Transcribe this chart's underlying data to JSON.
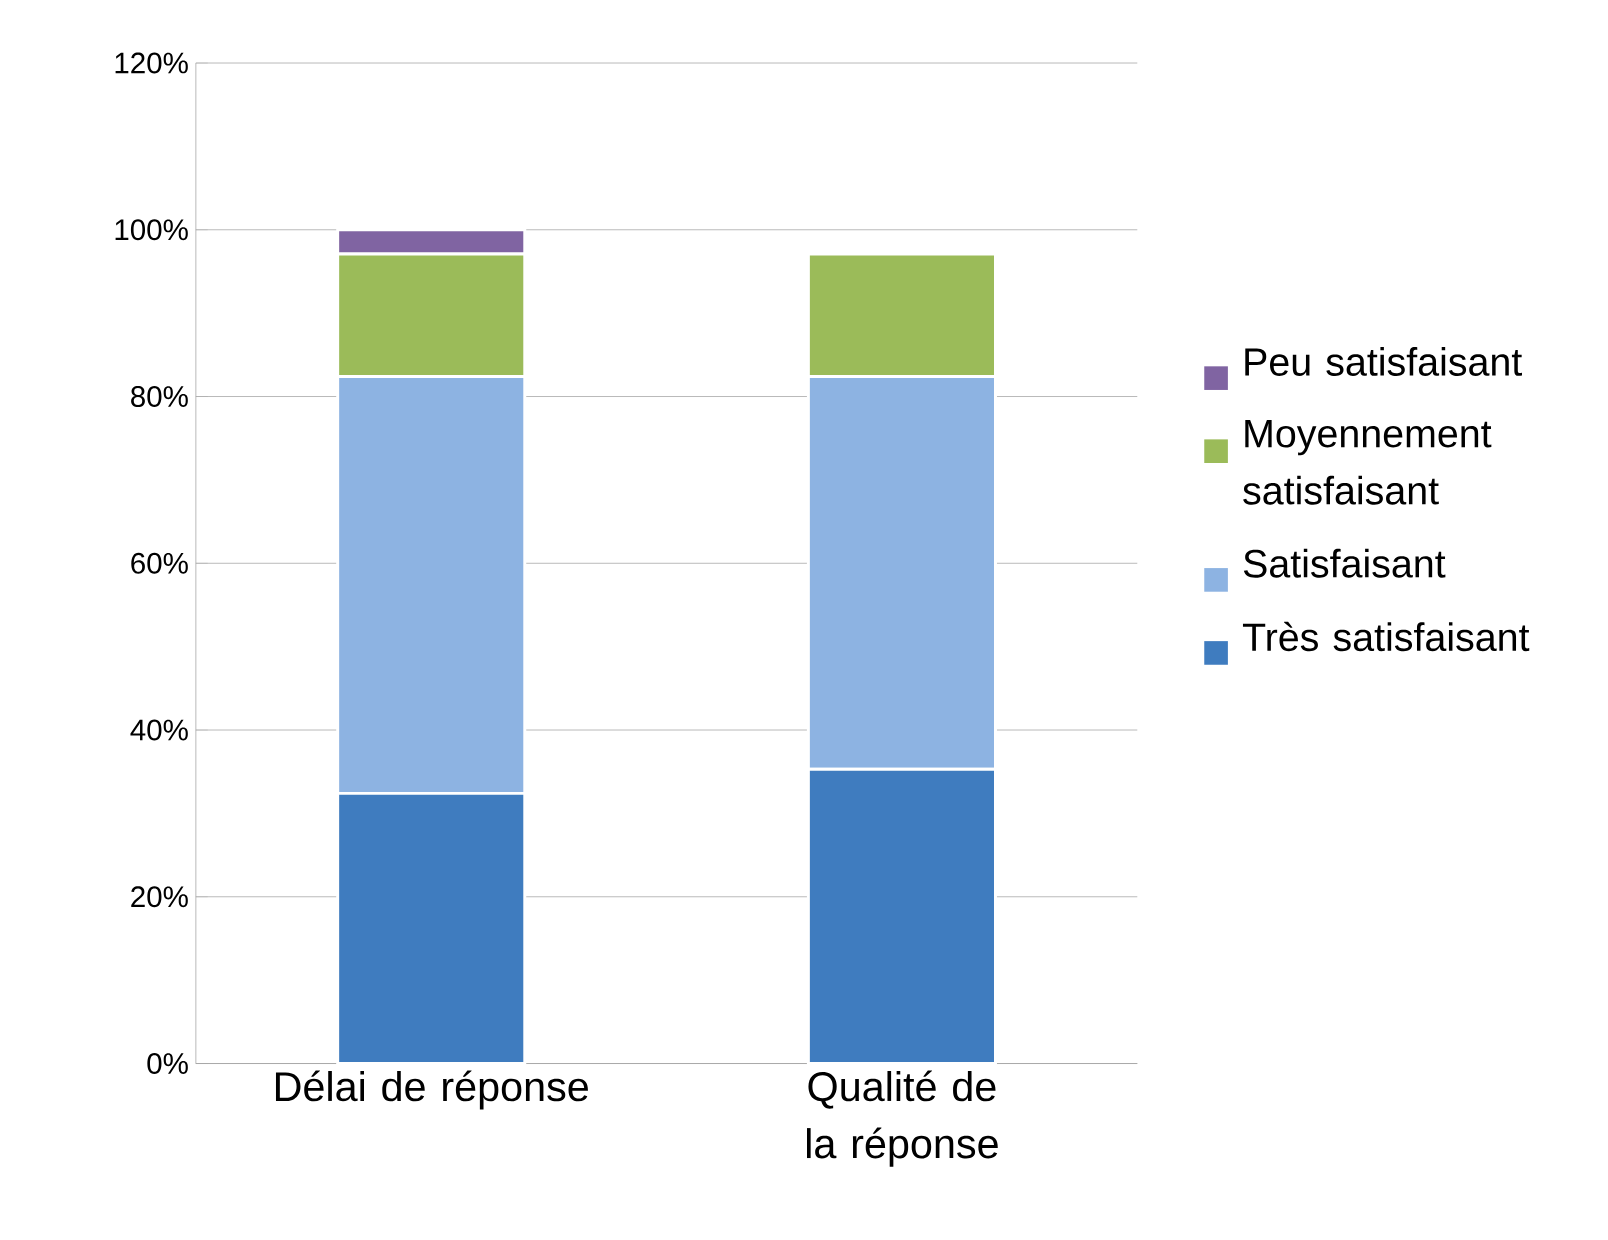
{
  "chart_data": {
    "type": "bar",
    "stacked": true,
    "categories": [
      "Délai de réponse",
      "Qualité de la réponse"
    ],
    "series": [
      {
        "name": "Très satisfaisant",
        "color": "#3f7cbf",
        "values": [
          32.4,
          35.3
        ]
      },
      {
        "name": "Satisfaisant",
        "color": "#8db3e2",
        "values": [
          50.0,
          47.1
        ]
      },
      {
        "name": "Moyennement satisfaisant",
        "color": "#9bbb59",
        "values": [
          14.7,
          14.7
        ]
      },
      {
        "name": "Peu satisfaisant",
        "color": "#8064a2",
        "values": [
          2.9,
          0
        ]
      }
    ],
    "ylim": [
      0,
      120
    ],
    "yticks": [
      {
        "value": 0,
        "label": "0%"
      },
      {
        "value": 20,
        "label": "20%"
      },
      {
        "value": 40,
        "label": "40%"
      },
      {
        "value": 60,
        "label": "60%"
      },
      {
        "value": 80,
        "label": "80%"
      },
      {
        "value": 100,
        "label": "100%"
      },
      {
        "value": 120,
        "label": "120%"
      }
    ],
    "grid": "y",
    "legend": "right"
  }
}
